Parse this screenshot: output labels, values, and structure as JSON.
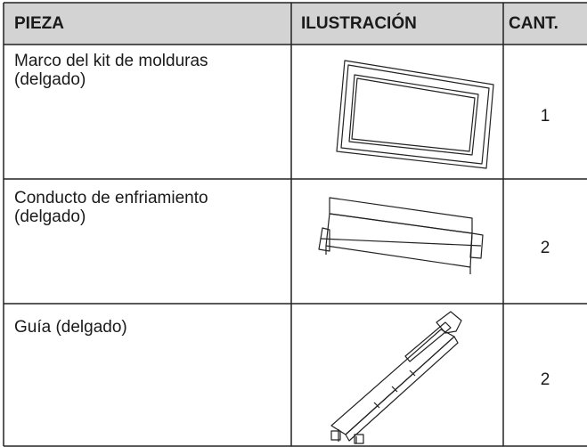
{
  "table": {
    "columns": [
      "PIEZA",
      "ILUSTRACIÓN",
      "CANT."
    ],
    "rows": [
      {
        "name": "Marco del kit de molduras (delgado)",
        "qty": 1
      },
      {
        "name": "Conducto de enfriamiento (delgado)",
        "qty": 2
      },
      {
        "name": "Guía (delgado)",
        "qty": 2
      }
    ]
  }
}
